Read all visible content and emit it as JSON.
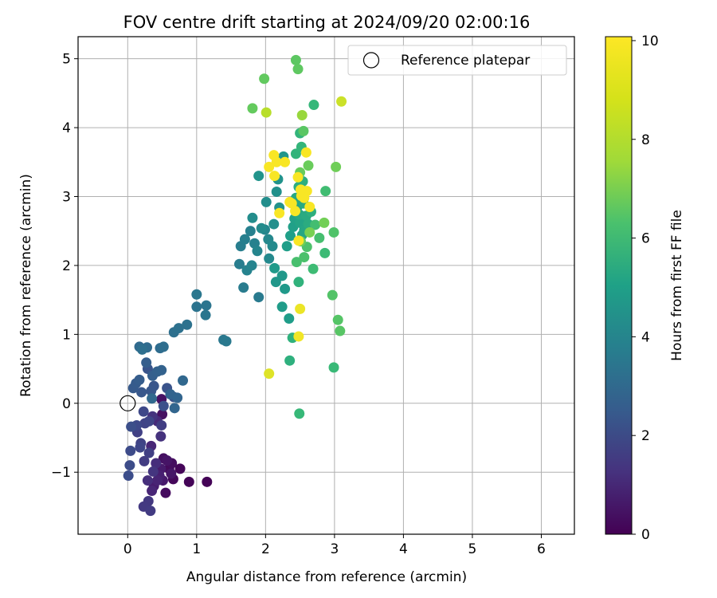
{
  "chart_data": {
    "type": "scatter",
    "title": "FOV centre drift starting at 2024/09/20 02:00:16",
    "xlabel": "Angular distance from reference (arcmin)",
    "ylabel": "Rotation from reference (arcmin)",
    "xlim": [
      -0.72,
      6.48
    ],
    "ylim": [
      -1.9,
      5.32
    ],
    "xticks": [
      0,
      1,
      2,
      3,
      4,
      5,
      6
    ],
    "yticks": [
      -1,
      0,
      1,
      2,
      3,
      4,
      5
    ],
    "grid": true,
    "legend": {
      "location": "top-right",
      "entries": [
        "Reference platepar"
      ]
    },
    "reference_point": {
      "x": 0,
      "y": 0
    },
    "colorbar": {
      "label": "Hours from first FF file",
      "min": 0,
      "max": 10.08,
      "ticks": [
        0,
        2,
        4,
        6,
        8,
        10
      ],
      "colormap": "viridis"
    },
    "points": [
      [
        1.15,
        -1.14,
        0.05
      ],
      [
        0.89,
        -1.14,
        0.1
      ],
      [
        0.76,
        -0.95,
        0.15
      ],
      [
        0.66,
        -1.1,
        0.2
      ],
      [
        0.6,
        -0.95,
        0.25
      ],
      [
        0.55,
        -1.3,
        0.3
      ],
      [
        0.64,
        -0.87,
        0.35
      ],
      [
        0.52,
        -0.8,
        0.4
      ],
      [
        0.5,
        -0.16,
        0.45
      ],
      [
        0.49,
        0.06,
        0.5
      ],
      [
        0.57,
        -0.83,
        0.55
      ],
      [
        0.63,
        -1.02,
        0.6
      ],
      [
        0.51,
        -1.12,
        0.7
      ],
      [
        0.48,
        -0.95,
        0.75
      ],
      [
        0.38,
        -1.2,
        0.8
      ],
      [
        0.46,
        -1.05,
        0.9
      ],
      [
        0.43,
        -1.12,
        1.0
      ],
      [
        0.35,
        -1.27,
        1.05
      ],
      [
        0.34,
        -0.62,
        1.1
      ],
      [
        0.43,
        -0.26,
        1.2
      ],
      [
        0.41,
        -0.87,
        1.3
      ],
      [
        0.29,
        -1.12,
        1.35
      ],
      [
        0.48,
        -0.48,
        1.45
      ],
      [
        0.36,
        -0.19,
        1.5
      ],
      [
        0.37,
        -0.99,
        1.55
      ],
      [
        0.3,
        -1.42,
        1.65
      ],
      [
        0.23,
        -1.5,
        1.7
      ],
      [
        0.33,
        -1.56,
        1.75
      ],
      [
        0.24,
        -0.84,
        1.8
      ],
      [
        0.49,
        -0.32,
        1.85
      ],
      [
        0.31,
        -0.72,
        1.9
      ],
      [
        0.14,
        -0.42,
        1.95
      ],
      [
        0.19,
        -0.58,
        2.0
      ],
      [
        0.25,
        -0.29,
        2.05
      ],
      [
        0.31,
        -0.26,
        2.1
      ],
      [
        0.18,
        -0.64,
        2.15
      ],
      [
        0.23,
        -0.12,
        2.2
      ],
      [
        0.13,
        -0.32,
        2.25
      ],
      [
        0.04,
        -0.69,
        2.3
      ],
      [
        0.03,
        -0.9,
        2.35
      ],
      [
        0.01,
        -1.05,
        2.4
      ],
      [
        0.05,
        -0.34,
        2.45
      ],
      [
        0.52,
        -0.04,
        2.5
      ],
      [
        0.67,
        0.09,
        2.55
      ],
      [
        0.57,
        0.22,
        2.6
      ],
      [
        0.29,
        0.5,
        2.65
      ],
      [
        0.38,
        0.25,
        2.7
      ],
      [
        0.34,
        0.18,
        2.75
      ],
      [
        0.2,
        0.16,
        2.8
      ],
      [
        0.08,
        0.22,
        2.85
      ],
      [
        0.12,
        0.29,
        2.9
      ],
      [
        0.17,
        0.34,
        2.95
      ],
      [
        0.27,
        0.59,
        3.0
      ],
      [
        0.36,
        0.4,
        3.05
      ],
      [
        0.43,
        0.46,
        3.1
      ],
      [
        0.49,
        0.48,
        3.15
      ],
      [
        0.62,
        0.13,
        3.2
      ],
      [
        0.72,
        0.08,
        3.25
      ],
      [
        0.68,
        -0.07,
        3.3
      ],
      [
        0.8,
        0.33,
        3.35
      ],
      [
        0.35,
        0.07,
        3.4
      ],
      [
        0.17,
        0.82,
        3.45
      ],
      [
        0.28,
        0.81,
        3.5
      ],
      [
        0.47,
        0.8,
        3.55
      ],
      [
        0.52,
        0.82,
        3.6
      ],
      [
        0.21,
        0.78,
        3.65
      ],
      [
        0.67,
        1.03,
        3.7
      ],
      [
        0.74,
        1.09,
        3.75
      ],
      [
        0.86,
        1.14,
        3.8
      ],
      [
        1.0,
        1.4,
        3.85
      ],
      [
        1.14,
        1.42,
        3.9
      ],
      [
        1.13,
        1.28,
        3.95
      ],
      [
        1.0,
        1.58,
        4.0
      ],
      [
        1.39,
        0.92,
        4.05
      ],
      [
        1.43,
        0.9,
        4.1
      ],
      [
        1.9,
        1.54,
        4.15
      ],
      [
        1.68,
        1.68,
        4.2
      ],
      [
        1.62,
        2.02,
        4.25
      ],
      [
        1.64,
        2.28,
        4.3
      ],
      [
        1.7,
        2.38,
        4.35
      ],
      [
        1.78,
        2.5,
        4.4
      ],
      [
        1.84,
        2.32,
        4.45
      ],
      [
        1.73,
        1.93,
        4.5
      ],
      [
        1.8,
        2.0,
        4.55
      ],
      [
        1.88,
        2.21,
        4.6
      ],
      [
        1.99,
        2.52,
        4.65
      ],
      [
        2.04,
        2.38,
        4.7
      ],
      [
        2.05,
        2.1,
        4.75
      ],
      [
        2.1,
        2.28,
        4.8
      ],
      [
        1.94,
        2.54,
        4.85
      ],
      [
        1.81,
        2.69,
        4.9
      ],
      [
        2.01,
        2.92,
        4.95
      ],
      [
        2.12,
        2.6,
        5.0
      ],
      [
        2.16,
        3.07,
        5.05
      ],
      [
        2.2,
        2.84,
        5.1
      ],
      [
        2.18,
        3.25,
        5.15
      ],
      [
        1.9,
        3.3,
        5.2
      ],
      [
        2.26,
        3.58,
        5.25
      ],
      [
        2.15,
        1.76,
        5.3
      ],
      [
        2.24,
        1.85,
        5.35
      ],
      [
        2.28,
        1.66,
        5.4
      ],
      [
        2.13,
        1.96,
        5.45
      ],
      [
        2.24,
        1.4,
        5.5
      ],
      [
        2.34,
        1.23,
        5.55
      ],
      [
        2.31,
        2.28,
        5.6
      ],
      [
        2.36,
        2.43,
        5.65
      ],
      [
        2.4,
        2.56,
        5.7
      ],
      [
        2.42,
        2.68,
        5.75
      ],
      [
        2.46,
        2.85,
        5.8
      ],
      [
        2.5,
        2.62,
        5.85
      ],
      [
        2.53,
        2.44,
        5.9
      ],
      [
        2.56,
        2.51,
        5.95
      ],
      [
        2.44,
        2.98,
        6.0
      ],
      [
        2.49,
        2.74,
        6.05
      ],
      [
        2.55,
        2.9,
        6.1
      ],
      [
        2.59,
        2.72,
        6.15
      ],
      [
        2.62,
        2.6,
        6.2
      ],
      [
        2.48,
        3.14,
        6.25
      ],
      [
        2.54,
        3.22,
        6.3
      ],
      [
        2.66,
        2.78,
        6.35
      ],
      [
        2.35,
        0.62,
        6.4
      ],
      [
        2.39,
        0.95,
        6.45
      ],
      [
        2.48,
        1.76,
        6.5
      ],
      [
        2.44,
        3.62,
        6.55
      ],
      [
        2.5,
        3.92,
        6.6
      ],
      [
        2.52,
        3.72,
        6.65
      ],
      [
        2.7,
        4.33,
        6.7
      ],
      [
        2.49,
        -0.15,
        6.75
      ],
      [
        2.99,
        0.52,
        6.8
      ],
      [
        2.86,
        2.18,
        6.85
      ],
      [
        2.69,
        1.95,
        6.9
      ],
      [
        2.87,
        3.08,
        6.95
      ],
      [
        2.72,
        2.59,
        7.0
      ],
      [
        2.78,
        2.4,
        7.05
      ],
      [
        2.45,
        2.05,
        7.1
      ],
      [
        2.56,
        2.12,
        7.15
      ],
      [
        2.6,
        2.27,
        7.2
      ],
      [
        2.99,
        2.48,
        7.25
      ],
      [
        2.97,
        1.57,
        7.3
      ],
      [
        3.05,
        1.21,
        7.35
      ],
      [
        3.08,
        1.05,
        7.4
      ],
      [
        2.55,
        3.95,
        7.45
      ],
      [
        2.44,
        4.98,
        7.5
      ],
      [
        2.47,
        4.85,
        7.55
      ],
      [
        1.98,
        4.71,
        7.6
      ],
      [
        1.81,
        4.28,
        7.65
      ],
      [
        2.5,
        3.35,
        7.7
      ],
      [
        2.62,
        3.45,
        7.75
      ],
      [
        2.51,
        2.35,
        7.8
      ],
      [
        3.02,
        3.43,
        7.85
      ],
      [
        2.85,
        2.62,
        7.9
      ],
      [
        2.57,
        3.08,
        7.95
      ],
      [
        2.64,
        2.48,
        8.0
      ],
      [
        2.53,
        4.18,
        8.5
      ],
      [
        2.01,
        4.22,
        9.0
      ],
      [
        3.1,
        4.38,
        9.3
      ],
      [
        2.05,
        0.43,
        9.6
      ],
      [
        2.5,
        1.37,
        9.8
      ],
      [
        2.48,
        0.97,
        9.9
      ],
      [
        2.12,
        3.6,
        10.0
      ],
      [
        2.16,
        3.5,
        10.0
      ],
      [
        2.28,
        3.5,
        10.0
      ],
      [
        2.05,
        3.43,
        10.0
      ],
      [
        2.47,
        3.28,
        10.0
      ],
      [
        2.13,
        3.3,
        10.0
      ],
      [
        2.59,
        3.64,
        10.0
      ],
      [
        2.2,
        2.76,
        10.0
      ],
      [
        2.35,
        2.92,
        10.0
      ],
      [
        2.43,
        2.79,
        10.0
      ],
      [
        2.52,
        3.01,
        10.0
      ],
      [
        2.6,
        3.08,
        10.0
      ],
      [
        2.64,
        2.85,
        10.0
      ],
      [
        2.56,
        2.98,
        10.0
      ],
      [
        2.48,
        2.36,
        10.0
      ],
      [
        2.51,
        3.1,
        10.0
      ],
      [
        2.38,
        2.9,
        10.0
      ]
    ]
  }
}
